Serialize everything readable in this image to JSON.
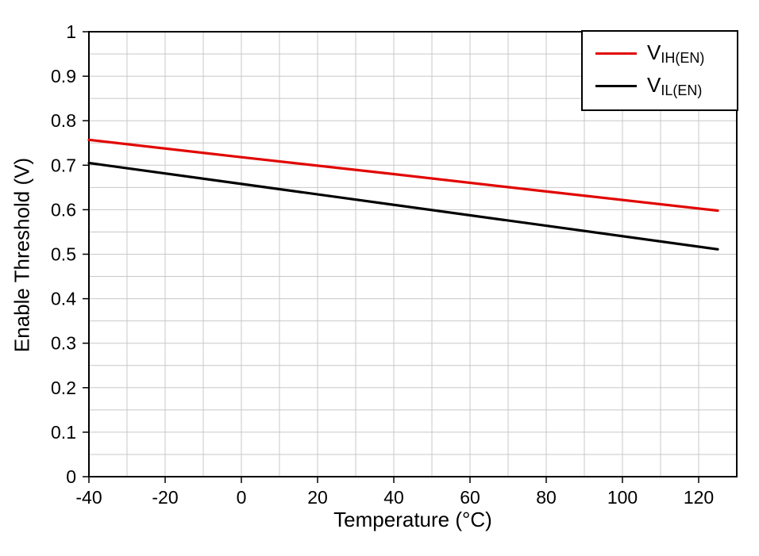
{
  "chart_data": {
    "type": "line",
    "title": "",
    "xlabel": "Temperature (°C)",
    "ylabel": "Enable Threshold (V)",
    "xlim": [
      -40,
      130
    ],
    "ylim": [
      0,
      1
    ],
    "x_ticks": [
      -40,
      -20,
      0,
      20,
      40,
      60,
      80,
      100,
      120
    ],
    "y_ticks": [
      0,
      0.1,
      0.2,
      0.3,
      0.4,
      0.5,
      0.6,
      0.7,
      0.8,
      0.9,
      1
    ],
    "y_tick_labels": [
      "0",
      "0.1",
      "0.2",
      "0.3",
      "0.4",
      "0.5",
      "0.6",
      "0.7",
      "0.8",
      "0.9",
      "1"
    ],
    "grid": {
      "on": true,
      "x_minor_step": 10,
      "y_minor_step": 0.05,
      "color": "#c8c8c8"
    },
    "legend": {
      "position": "top-right",
      "entries": [
        {
          "base": "V",
          "sub": "IH(EN)",
          "color": "#e10600"
        },
        {
          "base": "V",
          "sub": "IL(EN)",
          "color": "#000000"
        }
      ]
    },
    "series": [
      {
        "name": "VIH(EN)",
        "color": "#e10600",
        "points": [
          [
            -40,
            0.757
          ],
          [
            0,
            0.718
          ],
          [
            40,
            0.68
          ],
          [
            80,
            0.641
          ],
          [
            125,
            0.598
          ]
        ]
      },
      {
        "name": "VIL(EN)",
        "color": "#000000",
        "points": [
          [
            -40,
            0.705
          ],
          [
            0,
            0.658
          ],
          [
            40,
            0.611
          ],
          [
            80,
            0.564
          ],
          [
            125,
            0.511
          ]
        ]
      }
    ]
  }
}
